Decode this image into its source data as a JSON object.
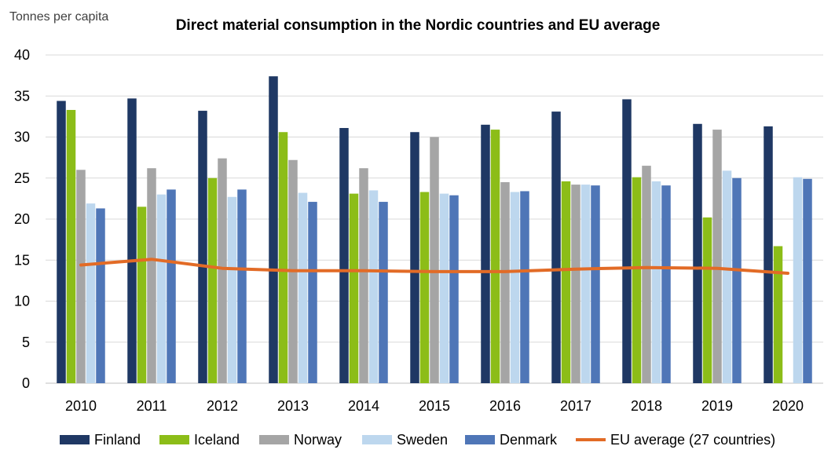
{
  "chart_data": {
    "type": "bar",
    "title": "Direct material consumption in the Nordic countries and EU average",
    "unit_label": "Tonnes per capita",
    "xlabel": "",
    "ylabel": "",
    "categories": [
      "2010",
      "2011",
      "2012",
      "2013",
      "2014",
      "2015",
      "2016",
      "2017",
      "2018",
      "2019",
      "2020"
    ],
    "ylim": [
      0,
      40
    ],
    "y_ticks": [
      "0",
      "5",
      "10",
      "15",
      "20",
      "25",
      "30",
      "35",
      "40"
    ],
    "grid": "horizontal",
    "legend_position": "bottom",
    "series": [
      {
        "name": "Finland",
        "type": "bar",
        "color": "#1f3864",
        "values": [
          34.4,
          34.7,
          33.2,
          37.4,
          31.1,
          30.6,
          31.5,
          33.1,
          34.6,
          31.6,
          31.3
        ]
      },
      {
        "name": "Iceland",
        "type": "bar",
        "color": "#8cbd18",
        "values": [
          33.3,
          21.5,
          25.0,
          30.6,
          23.1,
          23.3,
          30.9,
          24.6,
          25.1,
          20.2,
          16.7
        ]
      },
      {
        "name": "Norway",
        "type": "bar",
        "color": "#a5a5a5",
        "values": [
          26.0,
          26.2,
          27.4,
          27.2,
          26.2,
          30.0,
          24.5,
          24.2,
          26.5,
          30.9,
          null
        ]
      },
      {
        "name": "Sweden",
        "type": "bar",
        "color": "#bdd7ee",
        "values": [
          21.9,
          23.0,
          22.7,
          23.2,
          23.5,
          23.1,
          23.3,
          24.2,
          24.6,
          25.9,
          25.1
        ]
      },
      {
        "name": "Denmark",
        "type": "bar",
        "color": "#4f76b7",
        "values": [
          21.3,
          23.6,
          23.6,
          22.1,
          22.1,
          22.9,
          23.4,
          24.1,
          24.1,
          25.0,
          24.9
        ]
      },
      {
        "name": "EU average (27 countries)",
        "type": "line",
        "color": "#e26b26",
        "values": [
          14.4,
          15.1,
          14.0,
          13.7,
          13.7,
          13.6,
          13.6,
          13.9,
          14.1,
          14.0,
          13.4
        ]
      }
    ]
  }
}
